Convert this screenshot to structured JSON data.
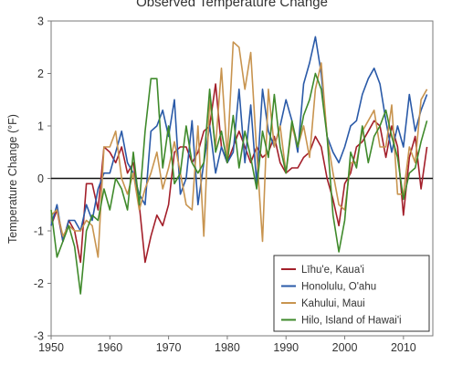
{
  "chart_data": {
    "type": "line",
    "title": "Observed Temperature Change",
    "xlabel": "",
    "ylabel": "Temperature Change (°F)",
    "xlim": [
      1950,
      2015
    ],
    "ylim": [
      -3,
      3
    ],
    "x_ticks": [
      1950,
      1960,
      1970,
      1980,
      1990,
      2000,
      2010
    ],
    "y_ticks": [
      -3,
      -2,
      -1,
      0,
      1,
      2,
      3
    ],
    "grid": false,
    "legend_position": "bottom-right",
    "x": [
      1950,
      1951,
      1952,
      1953,
      1954,
      1955,
      1956,
      1957,
      1958,
      1959,
      1960,
      1961,
      1962,
      1963,
      1964,
      1965,
      1966,
      1967,
      1968,
      1969,
      1970,
      1971,
      1972,
      1973,
      1974,
      1975,
      1976,
      1977,
      1978,
      1979,
      1980,
      1981,
      1982,
      1983,
      1984,
      1985,
      1986,
      1987,
      1988,
      1989,
      1990,
      1991,
      1992,
      1993,
      1994,
      1995,
      1996,
      1997,
      1998,
      1999,
      2000,
      2001,
      2002,
      2003,
      2004,
      2005,
      2006,
      2007,
      2008,
      2009,
      2010,
      2011,
      2012,
      2013,
      2014
    ],
    "series": [
      {
        "name": "Līhu'e, Kaua'i",
        "color": "#a31f2a",
        "values": [
          -0.9,
          -0.6,
          -1.2,
          -0.8,
          -1.0,
          -1.6,
          -0.1,
          -0.1,
          -0.6,
          0.6,
          0.5,
          0.3,
          0.6,
          0.1,
          0.3,
          -0.5,
          -1.6,
          -1.1,
          -0.7,
          -0.9,
          -0.5,
          0.5,
          0.6,
          0.6,
          0.3,
          0.5,
          0.9,
          1.0,
          1.8,
          0.6,
          0.3,
          0.6,
          0.9,
          0.6,
          0.3,
          0.6,
          0.4,
          0.5,
          0.8,
          0.3,
          0.1,
          0.2,
          0.2,
          0.4,
          0.5,
          0.8,
          0.6,
          0.0,
          -0.4,
          -0.9,
          -0.1,
          0.1,
          0.6,
          0.7,
          0.9,
          1.1,
          1.0,
          0.4,
          1.0,
          0.6,
          -0.7,
          0.4,
          0.8,
          -0.2,
          0.6
        ]
      },
      {
        "name": "Honolulu, O'ahu",
        "color": "#2a5aa8",
        "values": [
          -0.9,
          -0.5,
          -1.2,
          -0.8,
          -0.8,
          -1.0,
          -0.5,
          -0.8,
          -0.2,
          0.1,
          0.1,
          0.5,
          0.9,
          0.3,
          0.1,
          -0.3,
          -0.5,
          0.9,
          1.0,
          1.3,
          0.8,
          1.5,
          -0.3,
          0.0,
          1.1,
          -0.5,
          0.3,
          1.0,
          0.1,
          0.6,
          0.3,
          0.5,
          1.7,
          0.3,
          1.4,
          -0.1,
          1.7,
          0.9,
          0.6,
          1.0,
          1.5,
          1.1,
          0.5,
          1.8,
          2.2,
          2.7,
          2.0,
          0.8,
          0.5,
          0.3,
          0.6,
          1.0,
          1.1,
          1.6,
          1.9,
          2.1,
          1.8,
          1.1,
          0.5,
          1.0,
          0.6,
          1.6,
          0.9,
          1.3,
          1.6
        ]
      },
      {
        "name": "Kahului, Maui",
        "color": "#c8944f",
        "values": [
          -0.7,
          -0.6,
          -1.1,
          -0.9,
          -1.0,
          -1.0,
          -0.8,
          -0.9,
          -1.5,
          0.6,
          0.6,
          0.9,
          0.0,
          -0.3,
          0.1,
          -0.6,
          -0.2,
          0.1,
          0.5,
          -0.2,
          0.2,
          0.7,
          0.1,
          -0.5,
          -0.6,
          1.0,
          -1.1,
          1.5,
          0.6,
          2.1,
          0.4,
          2.6,
          2.5,
          1.7,
          2.4,
          0.5,
          -1.2,
          1.7,
          0.6,
          1.0,
          0.1,
          1.0,
          0.6,
          1.0,
          0.4,
          1.7,
          2.2,
          0.8,
          0.1,
          -0.5,
          -0.6,
          0.3,
          0.3,
          0.9,
          1.1,
          1.3,
          0.6,
          0.6,
          1.4,
          -0.3,
          -0.3,
          0.6,
          0.3,
          1.5,
          1.7
        ]
      },
      {
        "name": "Hilo, Island of Hawai'i",
        "color": "#3f8a2b",
        "values": [
          -0.6,
          -1.5,
          -1.2,
          -0.9,
          -1.3,
          -2.2,
          -1.0,
          -0.7,
          -0.8,
          -0.2,
          -0.6,
          0.0,
          -0.2,
          -0.6,
          0.5,
          -0.5,
          0.9,
          1.9,
          1.9,
          0.2,
          1.0,
          -0.1,
          0.1,
          1.0,
          0.3,
          0.1,
          0.3,
          1.7,
          0.5,
          0.9,
          0.3,
          1.2,
          0.2,
          0.9,
          0.4,
          -0.2,
          0.9,
          0.4,
          1.6,
          0.6,
          0.1,
          1.1,
          0.6,
          1.2,
          1.5,
          2.0,
          1.7,
          0.8,
          -0.7,
          -1.4,
          -0.8,
          0.5,
          0.2,
          1.0,
          0.3,
          0.8,
          1.0,
          1.3,
          0.8,
          0.4,
          -0.4,
          0.1,
          0.2,
          0.7,
          1.1
        ]
      }
    ]
  }
}
